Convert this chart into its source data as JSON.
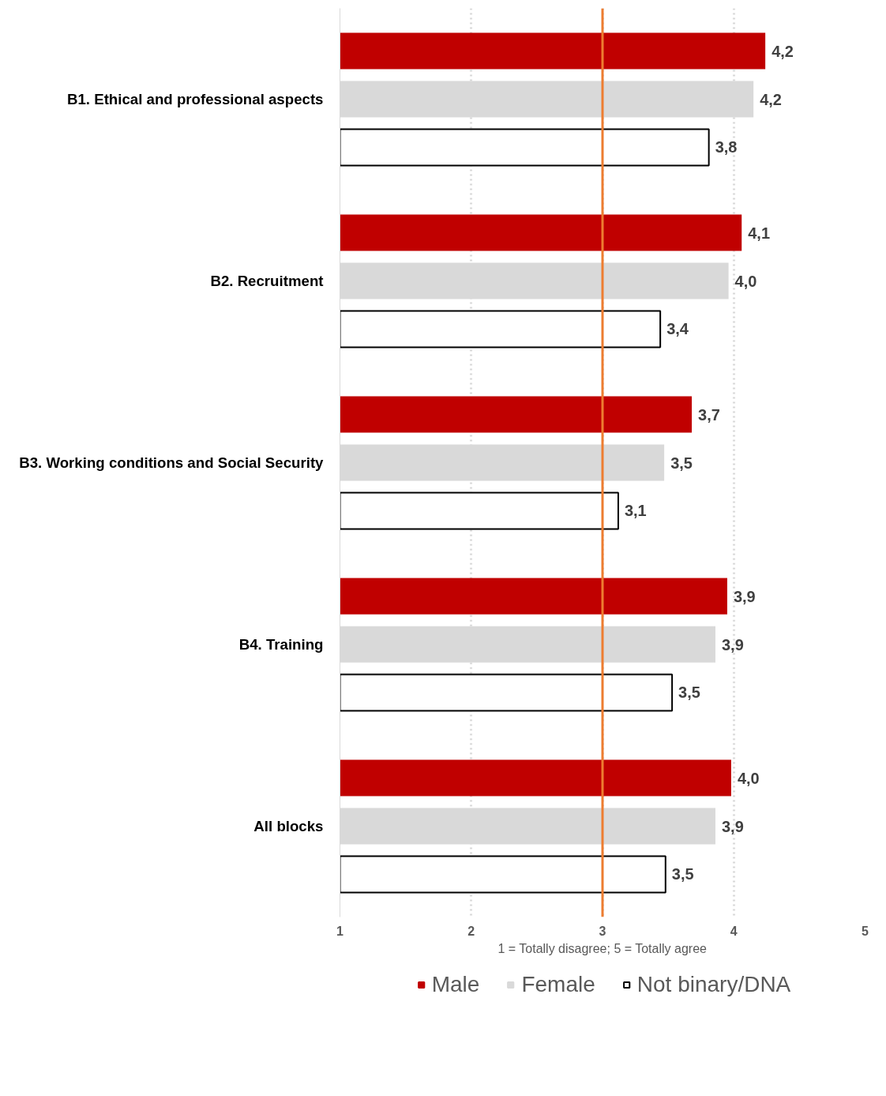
{
  "chart_data": {
    "type": "bar",
    "orientation": "horizontal",
    "categories": [
      "B1. Ethical and professional aspects",
      "B2. Recruitment",
      "B3. Working conditions and Social Security",
      "B4. Training",
      "All blocks"
    ],
    "series": [
      {
        "name": "Male",
        "color": "#c00000",
        "values": [
          4.24,
          4.06,
          3.68,
          3.95,
          3.98
        ],
        "value_labels": [
          "4,2",
          "4,1",
          "3,7",
          "3,9",
          "4,0"
        ]
      },
      {
        "name": "Female",
        "color": "#d9d9d9",
        "values": [
          4.15,
          3.96,
          3.47,
          3.86,
          3.86
        ],
        "value_labels": [
          "4,2",
          "4,0",
          "3,5",
          "3,9",
          "3,9"
        ]
      },
      {
        "name": "Not binary/DNA",
        "color": "#ffffff",
        "values": [
          3.81,
          3.44,
          3.12,
          3.53,
          3.48
        ],
        "value_labels": [
          "3,8",
          "3,4",
          "3,1",
          "3,5",
          "3,5"
        ]
      }
    ],
    "xlim": [
      1,
      5
    ],
    "xticks": [
      1,
      2,
      3,
      4,
      5
    ],
    "xlabel": "1 = Totally disagree; 5 = Totally agree",
    "ref_lines": [
      {
        "axis": "x",
        "value": 3,
        "color": "#ed7d31"
      }
    ],
    "grid": "x",
    "legend": "bottom"
  }
}
